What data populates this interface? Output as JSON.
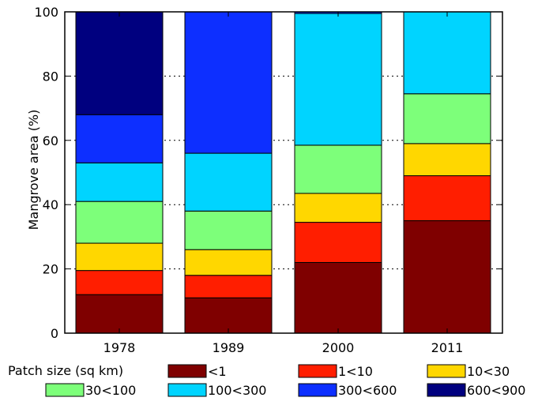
{
  "chart_data": {
    "type": "bar",
    "stacked": true,
    "categories": [
      "1978",
      "1989",
      "2000",
      "2011"
    ],
    "ylabel": "Mangrove area (%)",
    "xlabel": "",
    "ylim": [
      0,
      100
    ],
    "yticks": [
      0,
      20,
      40,
      60,
      80,
      100
    ],
    "grid": "horizontal dotted",
    "legend_title": "Patch size (sq km)",
    "legend_position": "bottom",
    "series": [
      {
        "name": "<1",
        "color": "#7f0000",
        "values": [
          12,
          11,
          22,
          35
        ]
      },
      {
        "name": "1<10",
        "color": "#ff1e00",
        "values": [
          7.5,
          7,
          12.5,
          14
        ]
      },
      {
        "name": "10<30",
        "color": "#ffd700",
        "values": [
          8.5,
          8,
          9,
          10
        ]
      },
      {
        "name": "30<100",
        "color": "#7dff7a",
        "values": [
          13,
          12,
          15,
          15.5
        ]
      },
      {
        "name": "100<300",
        "color": "#00d4ff",
        "values": [
          12,
          18,
          41,
          25.5
        ]
      },
      {
        "name": "300<600",
        "color": "#0d2fff",
        "values": [
          15,
          44,
          0.5,
          0
        ]
      },
      {
        "name": "600<900",
        "color": "#00007f",
        "values": [
          32,
          0,
          0,
          0
        ]
      }
    ]
  }
}
